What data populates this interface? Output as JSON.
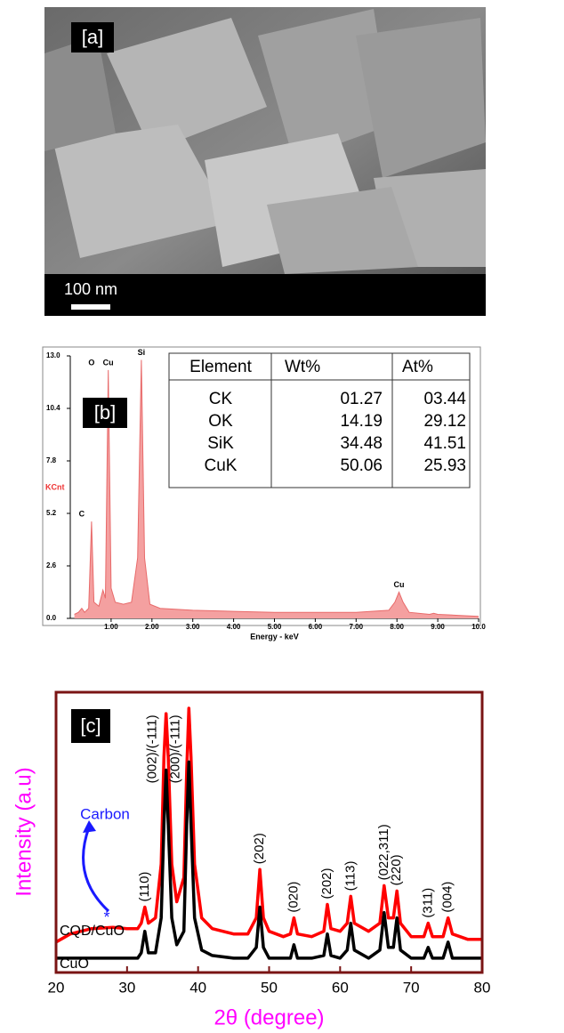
{
  "panel_a": {
    "label": "[a]",
    "scale_bar": "100 nm"
  },
  "table": {
    "header": [
      "Element",
      "Wt%",
      "At%"
    ],
    "rows": [
      [
        "CK",
        "01.27",
        "03.44"
      ],
      [
        "OK",
        "14.19",
        "29.12"
      ],
      [
        "SiK",
        "34.48",
        "41.51"
      ],
      [
        "CuK",
        "50.06",
        "25.93"
      ]
    ]
  },
  "chart_data": [
    {
      "type": "area",
      "label": "[b]",
      "x_label": "Energy - keV",
      "y_label": "KCnt",
      "color": "#f4a0a0",
      "x": [
        0.1,
        0.2,
        0.28,
        0.35,
        0.45,
        0.52,
        0.58,
        0.7,
        0.8,
        0.86,
        0.93,
        1.0,
        1.1,
        1.3,
        1.5,
        1.65,
        1.74,
        1.82,
        1.95,
        2.2,
        3,
        4,
        5,
        6,
        7,
        7.8,
        7.95,
        8.05,
        8.15,
        8.3,
        8.8,
        8.9,
        9.0,
        9.5,
        10
      ],
      "values": [
        0.2,
        0.3,
        0.5,
        0.3,
        0.5,
        4.8,
        0.8,
        0.6,
        1.4,
        1.0,
        12.3,
        1.5,
        0.8,
        0.7,
        0.8,
        3,
        12.8,
        3,
        0.7,
        0.5,
        0.4,
        0.35,
        0.3,
        0.3,
        0.3,
        0.4,
        0.8,
        1.3,
        0.8,
        0.3,
        0.2,
        0.25,
        0.2,
        0.15,
        0.1
      ],
      "xlim": [
        0,
        10
      ],
      "ylim": [
        0,
        13
      ],
      "xticks": [
        {
          "value": 1,
          "label": "1.00"
        },
        {
          "value": 2,
          "label": "2.00"
        },
        {
          "value": 3,
          "label": "3.00"
        },
        {
          "value": 4,
          "label": "4.00"
        },
        {
          "value": 5,
          "label": "5.00"
        },
        {
          "value": 6,
          "label": "6.00"
        },
        {
          "value": 7,
          "label": "7.00"
        },
        {
          "value": 8,
          "label": "8.00"
        },
        {
          "value": 9,
          "label": "9.00"
        },
        {
          "value": 10,
          "label": "10.0"
        }
      ],
      "yticks": [
        {
          "value": 0,
          "label": "0.0"
        },
        {
          "value": 2.6,
          "label": "2.6"
        },
        {
          "value": 5.2,
          "label": "5.2"
        },
        {
          "value": 7.8,
          "label": "7.8"
        },
        {
          "value": 10.4,
          "label": "10.4"
        },
        {
          "value": 13,
          "label": "13.0"
        }
      ],
      "peak_labels": [
        {
          "label": "C",
          "x": 0.28
        },
        {
          "label": "O",
          "x": 0.52
        },
        {
          "label": "Cu",
          "x": 0.93
        },
        {
          "label": "Si",
          "x": 1.74
        },
        {
          "label": "Cu",
          "x": 8.05
        }
      ]
    },
    {
      "type": "line",
      "label": "[c]",
      "x_label": "2θ (degree)",
      "y_label": "Intensity (a.u)",
      "annotations": [
        "Carbon",
        "*"
      ],
      "x": [
        20,
        22,
        25,
        28,
        30,
        31.5,
        32,
        32.5,
        33,
        34,
        34.8,
        35.2,
        35.5,
        35.8,
        36.3,
        37,
        38,
        38.4,
        38.7,
        39,
        39.5,
        40.5,
        42,
        45,
        47,
        48.2,
        48.7,
        49.2,
        50,
        52,
        53,
        53.5,
        54,
        56,
        57.7,
        58.2,
        58.7,
        60,
        61,
        61.5,
        62,
        64,
        65.6,
        66.2,
        66.8,
        67.5,
        68,
        68.5,
        70,
        71.8,
        72.4,
        73,
        74.5,
        75.2,
        75.8,
        78,
        80
      ],
      "series": [
        {
          "name": "CQD/CuO",
          "color": "#ff0000",
          "values": [
            11,
            14,
            16,
            16.5,
            16,
            16,
            18,
            24,
            18,
            20,
            40,
            80,
            96,
            80,
            40,
            26,
            35,
            75,
            98,
            80,
            40,
            20,
            16,
            14,
            14,
            20,
            38,
            20,
            15,
            13,
            14,
            20,
            14,
            13,
            15,
            25,
            16,
            15,
            18,
            28,
            18,
            15,
            18,
            32,
            20,
            20,
            30,
            18,
            13,
            13,
            18,
            13,
            13,
            20,
            14,
            12,
            12
          ]
        },
        {
          "name": "CuO",
          "color": "#000000",
          "values": [
            5,
            5,
            5,
            5,
            5,
            5,
            7,
            15,
            7,
            7,
            20,
            55,
            75,
            55,
            20,
            10,
            15,
            55,
            78,
            55,
            20,
            8,
            6,
            5,
            5,
            9,
            24,
            9,
            5,
            5,
            5,
            10,
            5,
            5,
            6,
            14,
            6,
            5,
            8,
            18,
            8,
            5,
            8,
            22,
            9,
            9,
            20,
            8,
            5,
            5,
            9,
            5,
            5,
            11,
            5,
            5,
            5
          ]
        }
      ],
      "xlim": [
        20,
        80
      ],
      "ylim": [
        0,
        100
      ],
      "xticks": [
        20,
        30,
        40,
        50,
        60,
        70,
        80
      ],
      "peak_labels": [
        {
          "label": "(110)",
          "x": 32.5
        },
        {
          "label": "(002)/(-111)",
          "x": 35.5
        },
        {
          "label": "(200)/(-111)",
          "x": 38.7
        },
        {
          "label": "(202)",
          "x": 48.7
        },
        {
          "label": "(020)",
          "x": 53.5
        },
        {
          "label": "(202)",
          "x": 58.2
        },
        {
          "label": "(113)",
          "x": 61.5
        },
        {
          "label": "(022,311)",
          "x": 66.2
        },
        {
          "label": "(220)",
          "x": 68
        },
        {
          "label": "(311)",
          "x": 72.4
        },
        {
          "label": "(004)",
          "x": 75.2
        }
      ]
    }
  ]
}
